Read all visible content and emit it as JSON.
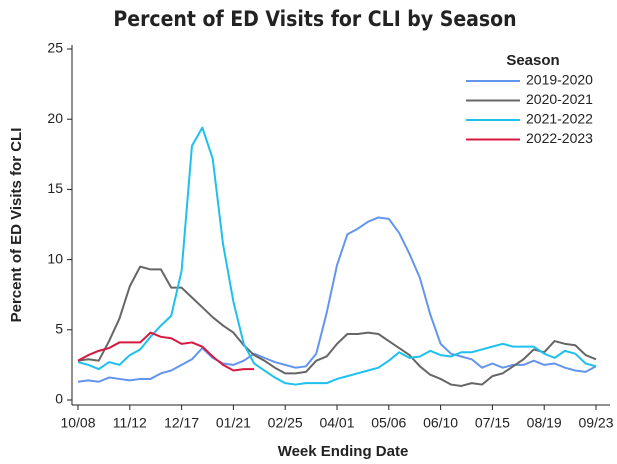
{
  "chart_data": {
    "type": "line",
    "title": "Percent of ED Visits for CLI by Season",
    "x_label": "Week Ending Date",
    "y_label": "Percent of ED Visits for CLI",
    "legend_title": "Season",
    "legend_position": "upper right",
    "categories": [
      "10/08",
      null,
      null,
      null,
      null,
      "11/12",
      null,
      null,
      null,
      null,
      "12/17",
      null,
      null,
      null,
      null,
      "01/21",
      null,
      null,
      null,
      null,
      "02/25",
      null,
      null,
      null,
      null,
      "04/01",
      null,
      null,
      null,
      null,
      "05/06",
      null,
      null,
      null,
      null,
      "06/10",
      null,
      null,
      null,
      null,
      "07/15",
      null,
      null,
      null,
      null,
      "08/19",
      null,
      null,
      null,
      null,
      "09/23"
    ],
    "ylim": [
      0,
      25
    ],
    "yticks": [
      0,
      5,
      10,
      15,
      20,
      25
    ],
    "series": [
      {
        "name": "2019-2020",
        "color": "#6495ed",
        "values": [
          1.3,
          1.4,
          1.3,
          1.6,
          1.5,
          1.4,
          1.5,
          1.5,
          1.9,
          2.1,
          2.5,
          2.9,
          3.7,
          3.0,
          2.6,
          2.5,
          2.8,
          3.3,
          3.0,
          2.7,
          2.5,
          2.3,
          2.4,
          3.3,
          6.2,
          9.6,
          11.8,
          12.2,
          12.7,
          13.0,
          12.9,
          11.9,
          10.4,
          8.7,
          6.1,
          4.0,
          3.3,
          3.1,
          2.9,
          2.3,
          2.6,
          2.3,
          2.5,
          2.5,
          2.8,
          2.5,
          2.6,
          2.3,
          2.1,
          2.0,
          2.4
        ]
      },
      {
        "name": "2020-2021",
        "color": "#666666",
        "values": [
          2.8,
          2.9,
          2.8,
          4.2,
          5.8,
          8.1,
          9.5,
          9.3,
          9.3,
          8.0,
          8.0,
          7.3,
          6.6,
          5.9,
          5.3,
          4.8,
          3.9,
          3.2,
          2.8,
          2.3,
          1.9,
          1.9,
          2.0,
          2.8,
          3.1,
          4.0,
          4.7,
          4.7,
          4.8,
          4.7,
          4.2,
          3.7,
          3.2,
          2.4,
          1.8,
          1.5,
          1.1,
          1.0,
          1.2,
          1.1,
          1.7,
          1.9,
          2.4,
          2.9,
          3.6,
          3.4,
          4.2,
          4.0,
          3.9,
          3.2,
          2.9
        ]
      },
      {
        "name": "2021-2022",
        "color": "#1ec0ee",
        "values": [
          2.7,
          2.5,
          2.2,
          2.7,
          2.5,
          3.2,
          3.6,
          4.5,
          5.3,
          6.0,
          9.2,
          18.1,
          19.4,
          17.2,
          11.1,
          7.0,
          4.0,
          2.6,
          2.1,
          1.6,
          1.2,
          1.1,
          1.2,
          1.2,
          1.2,
          1.5,
          1.7,
          1.9,
          2.1,
          2.3,
          2.8,
          3.4,
          3.0,
          3.1,
          3.5,
          3.2,
          3.1,
          3.4,
          3.4,
          3.6,
          3.8,
          4.0,
          3.8,
          3.8,
          3.8,
          3.3,
          3.0,
          3.5,
          3.3,
          2.6,
          2.4
        ]
      },
      {
        "name": "2022-2023",
        "color": "#d7193f",
        "values": [
          2.8,
          3.2,
          3.5,
          3.7,
          4.1,
          4.1,
          4.1,
          4.8,
          4.5,
          4.4,
          4.0,
          4.1,
          3.8,
          3.1,
          2.5,
          2.1,
          2.2,
          2.2,
          null,
          null,
          null,
          null,
          null,
          null,
          null,
          null,
          null,
          null,
          null,
          null,
          null,
          null,
          null,
          null,
          null,
          null,
          null,
          null,
          null,
          null,
          null,
          null,
          null,
          null,
          null,
          null,
          null,
          null,
          null,
          null,
          null
        ]
      }
    ]
  }
}
